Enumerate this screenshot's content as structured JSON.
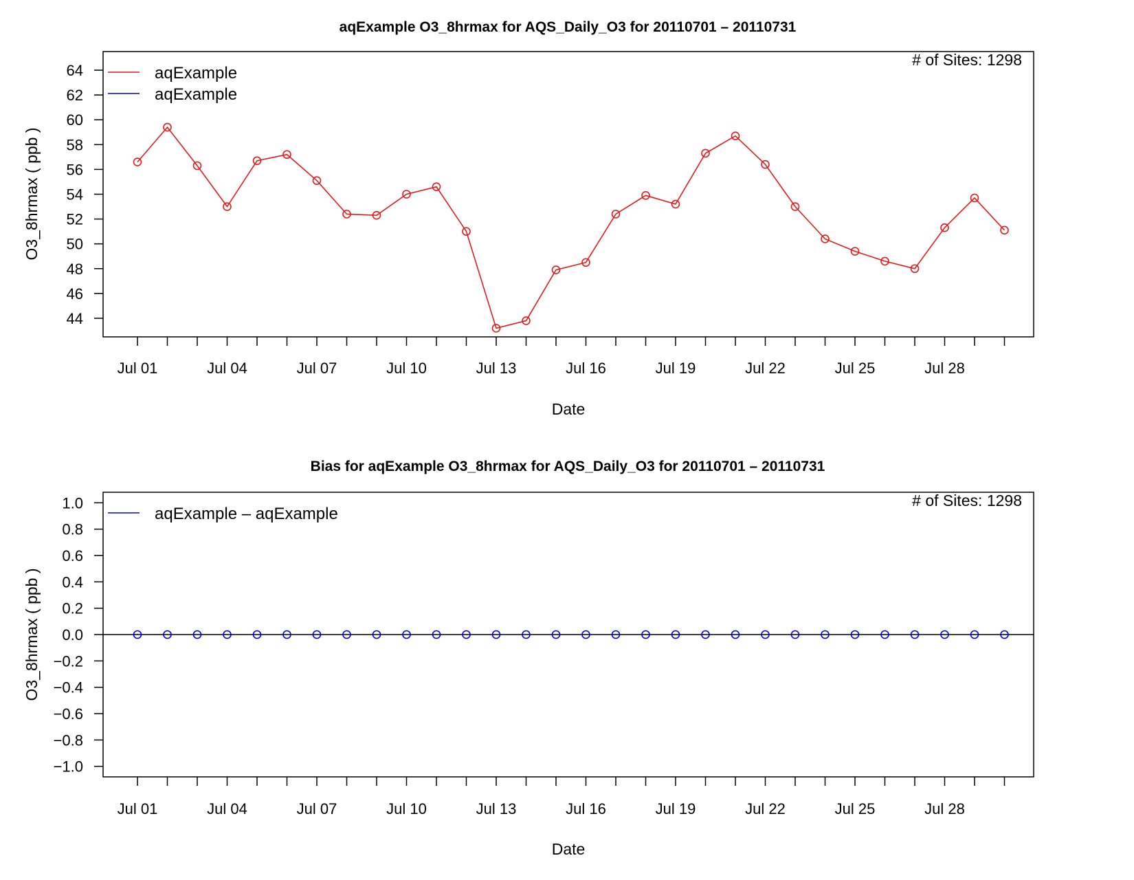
{
  "chart_data": [
    {
      "type": "line",
      "title": "aqExample O3_8hrmax for AQS_Daily_O3 for 20110701 – 20110731",
      "xlabel": "Date",
      "ylabel": "O3_8hrmax ( ppb )",
      "annotation": "# of Sites: 1298",
      "x": [
        "2011-07-01",
        "2011-07-02",
        "2011-07-03",
        "2011-07-04",
        "2011-07-05",
        "2011-07-06",
        "2011-07-07",
        "2011-07-08",
        "2011-07-09",
        "2011-07-10",
        "2011-07-11",
        "2011-07-12",
        "2011-07-13",
        "2011-07-14",
        "2011-07-15",
        "2011-07-16",
        "2011-07-17",
        "2011-07-18",
        "2011-07-19",
        "2011-07-20",
        "2011-07-21",
        "2011-07-22",
        "2011-07-23",
        "2011-07-24",
        "2011-07-25",
        "2011-07-26",
        "2011-07-27",
        "2011-07-28",
        "2011-07-29",
        "2011-07-30"
      ],
      "x_tick_labels": [
        "Jul 01",
        "Jul 04",
        "Jul 07",
        "Jul 10",
        "Jul 13",
        "Jul 16",
        "Jul 19",
        "Jul 22",
        "Jul 25",
        "Jul 28"
      ],
      "x_tick_dates": [
        "2011-07-01",
        "2011-07-04",
        "2011-07-07",
        "2011-07-10",
        "2011-07-13",
        "2011-07-16",
        "2011-07-19",
        "2011-07-22",
        "2011-07-25",
        "2011-07-28"
      ],
      "y_ticks": [
        "44",
        "46",
        "48",
        "50",
        "52",
        "54",
        "56",
        "58",
        "60",
        "62",
        "64"
      ],
      "ylim": [
        42.5,
        65.5
      ],
      "legend_placement": "top-left",
      "grid": false,
      "series": [
        {
          "name": "aqExample",
          "color": "#e41a1c",
          "marker": "open-circle",
          "values": [
            56.6,
            59.4,
            56.3,
            53.0,
            56.7,
            57.2,
            55.1,
            52.4,
            52.3,
            54.0,
            54.6,
            51.0,
            43.2,
            43.8,
            47.9,
            48.5,
            52.4,
            53.9,
            53.2,
            57.3,
            58.7,
            56.4,
            53.0,
            50.4,
            49.4,
            48.6,
            48.0,
            51.3,
            53.7,
            51.1
          ]
        },
        {
          "name": "aqExample",
          "color": "#0000ee",
          "marker": "open-circle",
          "values": [
            56.6,
            59.4,
            56.3,
            53.0,
            56.7,
            57.2,
            55.1,
            52.4,
            52.3,
            54.0,
            54.6,
            51.0,
            43.2,
            43.8,
            47.9,
            48.5,
            52.4,
            53.9,
            53.2,
            57.3,
            58.7,
            56.4,
            53.0,
            50.4,
            49.4,
            48.6,
            48.0,
            51.3,
            53.7,
            51.1
          ]
        }
      ]
    },
    {
      "type": "scatter",
      "title": "Bias for aqExample O3_8hrmax for AQS_Daily_O3 for 20110701 – 20110731",
      "xlabel": "Date",
      "ylabel": "O3_8hrmax ( ppb )",
      "annotation": "# of Sites: 1298",
      "x": [
        "2011-07-01",
        "2011-07-02",
        "2011-07-03",
        "2011-07-04",
        "2011-07-05",
        "2011-07-06",
        "2011-07-07",
        "2011-07-08",
        "2011-07-09",
        "2011-07-10",
        "2011-07-11",
        "2011-07-12",
        "2011-07-13",
        "2011-07-14",
        "2011-07-15",
        "2011-07-16",
        "2011-07-17",
        "2011-07-18",
        "2011-07-19",
        "2011-07-20",
        "2011-07-21",
        "2011-07-22",
        "2011-07-23",
        "2011-07-24",
        "2011-07-25",
        "2011-07-26",
        "2011-07-27",
        "2011-07-28",
        "2011-07-29",
        "2011-07-30"
      ],
      "x_tick_labels": [
        "Jul 01",
        "Jul 04",
        "Jul 07",
        "Jul 10",
        "Jul 13",
        "Jul 16",
        "Jul 19",
        "Jul 22",
        "Jul 25",
        "Jul 28"
      ],
      "x_tick_dates": [
        "2011-07-01",
        "2011-07-04",
        "2011-07-07",
        "2011-07-10",
        "2011-07-13",
        "2011-07-16",
        "2011-07-19",
        "2011-07-22",
        "2011-07-25",
        "2011-07-28"
      ],
      "y_ticks": [
        "−1.0",
        "−0.8",
        "−0.6",
        "−0.4",
        "−0.2",
        "0.0",
        "0.2",
        "0.4",
        "0.6",
        "0.8",
        "1.0"
      ],
      "ylim": [
        -1.08,
        1.08
      ],
      "reference_line": 0,
      "legend_placement": "top-left",
      "grid": false,
      "series": [
        {
          "name": "aqExample – aqExample",
          "color": "#0000ee",
          "marker": "open-circle",
          "values": [
            0,
            0,
            0,
            0,
            0,
            0,
            0,
            0,
            0,
            0,
            0,
            0,
            0,
            0,
            0,
            0,
            0,
            0,
            0,
            0,
            0,
            0,
            0,
            0,
            0,
            0,
            0,
            0,
            0,
            0
          ]
        }
      ]
    }
  ]
}
